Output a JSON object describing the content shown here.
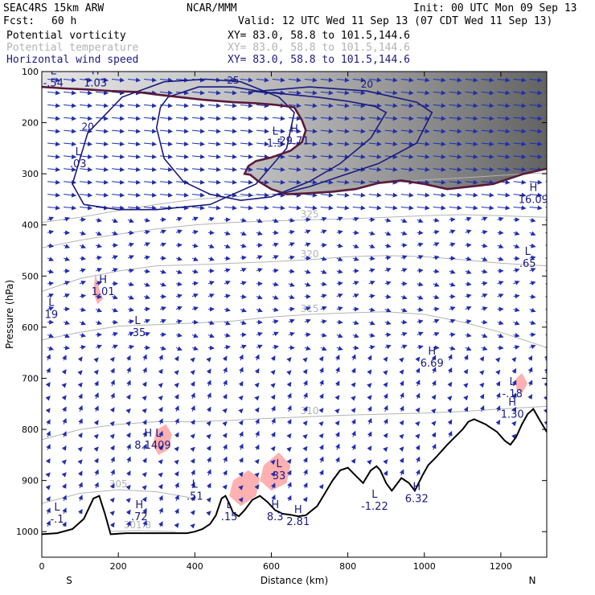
{
  "header": {
    "model": "SEAC4RS 15km ARW",
    "org": "NCAR/MMM",
    "init": "Init: 00 UTC Mon 09 Sep 13",
    "fcst_label": "Fcst:",
    "fcst_value": "60 h",
    "valid": "Valid: 12 UTC Wed 11 Sep 13 (07 CDT Wed 11 Sep 13)"
  },
  "fields": [
    {
      "name": "Potential vorticity",
      "xy": "XY=  83.0, 58.8 to 101.5,144.6",
      "color": "#000000"
    },
    {
      "name": "Potential temperature",
      "xy": "XY=  83.0, 58.8 to 101.5,144.6",
      "color": "#b4b4b4"
    },
    {
      "name": "Horizontal wind speed",
      "xy": "XY=  83.0, 58.8 to 101.5,144.6",
      "color": "#1a1a80"
    }
  ],
  "colors": {
    "pv_contour": "#5a1a3a",
    "theta_contour": "#b4b4b4",
    "wind_contour": "#1a1a80",
    "vectors": "#1f2fb0",
    "high_pv_fill": "#ffb0b0",
    "terrain": "#000000"
  },
  "chart_data": {
    "type": "cross-section",
    "xlabel": "Distance (km)",
    "ylabel": "Pressure (hPa)",
    "xlim": [
      0,
      1320
    ],
    "ylim": [
      1050,
      100
    ],
    "x_ticks": [
      0,
      200,
      400,
      600,
      800,
      1000,
      1200
    ],
    "y_ticks": [
      100,
      200,
      300,
      400,
      500,
      600,
      700,
      800,
      900,
      1000
    ],
    "endpoints": {
      "left": "S",
      "right": "N"
    },
    "terrain_surface": [
      [
        0,
        1005
      ],
      [
        40,
        1003
      ],
      [
        80,
        995
      ],
      [
        110,
        975
      ],
      [
        135,
        935
      ],
      [
        150,
        930
      ],
      [
        165,
        965
      ],
      [
        180,
        1005
      ],
      [
        220,
        1003
      ],
      [
        300,
        1003
      ],
      [
        380,
        1003
      ],
      [
        400,
        1000
      ],
      [
        420,
        995
      ],
      [
        440,
        985
      ],
      [
        455,
        968
      ],
      [
        470,
        935
      ],
      [
        480,
        930
      ],
      [
        490,
        945
      ],
      [
        500,
        963
      ],
      [
        515,
        970
      ],
      [
        530,
        958
      ],
      [
        550,
        938
      ],
      [
        570,
        930
      ],
      [
        590,
        942
      ],
      [
        610,
        958
      ],
      [
        630,
        965
      ],
      [
        650,
        967
      ],
      [
        670,
        970
      ],
      [
        690,
        968
      ],
      [
        720,
        950
      ],
      [
        740,
        925
      ],
      [
        760,
        900
      ],
      [
        780,
        880
      ],
      [
        800,
        875
      ],
      [
        820,
        890
      ],
      [
        840,
        905
      ],
      [
        860,
        880
      ],
      [
        875,
        872
      ],
      [
        885,
        880
      ],
      [
        900,
        905
      ],
      [
        915,
        920
      ],
      [
        925,
        910
      ],
      [
        940,
        895
      ],
      [
        960,
        905
      ],
      [
        975,
        920
      ],
      [
        995,
        890
      ],
      [
        1010,
        870
      ],
      [
        1030,
        855
      ],
      [
        1060,
        830
      ],
      [
        1080,
        815
      ],
      [
        1100,
        800
      ],
      [
        1115,
        785
      ],
      [
        1130,
        780
      ],
      [
        1160,
        790
      ],
      [
        1190,
        805
      ],
      [
        1210,
        822
      ],
      [
        1225,
        830
      ],
      [
        1240,
        815
      ],
      [
        1255,
        790
      ],
      [
        1270,
        770
      ],
      [
        1285,
        760
      ],
      [
        1300,
        780
      ],
      [
        1320,
        805
      ]
    ],
    "tropopause_pv": [
      [
        0,
        130
      ],
      [
        60,
        133
      ],
      [
        120,
        135
      ],
      [
        180,
        138
      ],
      [
        250,
        140
      ],
      [
        300,
        145
      ],
      [
        360,
        150
      ],
      [
        420,
        155
      ],
      [
        500,
        160
      ],
      [
        560,
        162
      ],
      [
        610,
        165
      ],
      [
        660,
        170
      ],
      [
        680,
        195
      ],
      [
        690,
        215
      ],
      [
        680,
        238
      ],
      [
        650,
        255
      ],
      [
        600,
        268
      ],
      [
        560,
        275
      ],
      [
        540,
        285
      ],
      [
        530,
        300
      ],
      [
        545,
        302
      ],
      [
        565,
        314
      ],
      [
        600,
        330
      ],
      [
        640,
        340
      ],
      [
        700,
        338
      ],
      [
        760,
        335
      ],
      [
        820,
        330
      ],
      [
        880,
        318
      ],
      [
        940,
        313
      ],
      [
        1000,
        320
      ],
      [
        1060,
        330
      ],
      [
        1120,
        325
      ],
      [
        1180,
        320
      ],
      [
        1220,
        310
      ],
      [
        1260,
        300
      ],
      [
        1320,
        290
      ]
    ],
    "wind_contours": [
      {
        "label": "20",
        "points": [
          [
            110,
            360
          ],
          [
            80,
            320
          ],
          [
            120,
            220
          ],
          [
            210,
            150
          ],
          [
            320,
            120
          ],
          [
            430,
            115
          ],
          [
            520,
            120
          ],
          [
            620,
            150
          ],
          [
            660,
            180
          ],
          [
            640,
            250
          ],
          [
            560,
            320
          ],
          [
            440,
            360
          ],
          [
            300,
            370
          ],
          [
            200,
            370
          ],
          [
            110,
            360
          ]
        ]
      },
      {
        "label": "25",
        "points": [
          [
            330,
            150
          ],
          [
            410,
            130
          ],
          [
            500,
            130
          ],
          [
            580,
            140
          ],
          [
            650,
            145
          ],
          [
            720,
            150
          ],
          [
            800,
            158
          ],
          [
            870,
            168
          ],
          [
            900,
            180
          ],
          [
            860,
            230
          ],
          [
            780,
            280
          ],
          [
            700,
            315
          ],
          [
            600,
            345
          ],
          [
            520,
            352
          ],
          [
            440,
            340
          ],
          [
            370,
            315
          ],
          [
            320,
            270
          ],
          [
            300,
            210
          ],
          [
            310,
            170
          ],
          [
            330,
            150
          ]
        ]
      },
      {
        "label": "20",
        "points": [
          [
            540,
            140
          ],
          [
            700,
            130
          ],
          [
            850,
            138
          ],
          [
            980,
            160
          ],
          [
            1020,
            180
          ],
          [
            980,
            240
          ],
          [
            880,
            280
          ],
          [
            780,
            305
          ],
          [
            700,
            325
          ],
          [
            620,
            340
          ]
        ]
      }
    ],
    "theta_contours": [
      {
        "label": "330",
        "points": [
          [
            0,
            395
          ],
          [
            100,
            385
          ],
          [
            200,
            372
          ],
          [
            300,
            360
          ],
          [
            400,
            350
          ],
          [
            500,
            345
          ],
          [
            600,
            340
          ],
          [
            700,
            332
          ],
          [
            800,
            325
          ],
          [
            900,
            318
          ],
          [
            1000,
            312
          ],
          [
            1100,
            308
          ],
          [
            1200,
            303
          ],
          [
            1320,
            298
          ]
        ]
      },
      {
        "label": "325",
        "points": [
          [
            0,
            445
          ],
          [
            100,
            430
          ],
          [
            200,
            418
          ],
          [
            300,
            408
          ],
          [
            400,
            400
          ],
          [
            500,
            395
          ],
          [
            600,
            392
          ],
          [
            700,
            390
          ],
          [
            800,
            388
          ],
          [
            900,
            385
          ],
          [
            1000,
            382
          ],
          [
            1100,
            380
          ],
          [
            1200,
            382
          ],
          [
            1320,
            385
          ]
        ]
      },
      {
        "label": "320",
        "points": [
          [
            0,
            530
          ],
          [
            100,
            505
          ],
          [
            200,
            490
          ],
          [
            300,
            480
          ],
          [
            400,
            478
          ],
          [
            500,
            475
          ],
          [
            600,
            472
          ],
          [
            700,
            468
          ],
          [
            800,
            462
          ],
          [
            900,
            460
          ],
          [
            1000,
            462
          ],
          [
            1100,
            468
          ],
          [
            1200,
            475
          ],
          [
            1320,
            480
          ]
        ]
      },
      {
        "label": "315",
        "points": [
          [
            0,
            625
          ],
          [
            100,
            610
          ],
          [
            200,
            598
          ],
          [
            300,
            595
          ],
          [
            400,
            592
          ],
          [
            500,
            588
          ],
          [
            600,
            580
          ],
          [
            700,
            575
          ],
          [
            800,
            572
          ],
          [
            900,
            570
          ],
          [
            1000,
            575
          ],
          [
            1100,
            590
          ],
          [
            1200,
            610
          ],
          [
            1320,
            640
          ]
        ]
      },
      {
        "label": "310",
        "points": [
          [
            0,
            820
          ],
          [
            100,
            800
          ],
          [
            200,
            790
          ],
          [
            300,
            785
          ],
          [
            400,
            785
          ],
          [
            500,
            782
          ],
          [
            600,
            778
          ],
          [
            700,
            775
          ],
          [
            800,
            772
          ],
          [
            900,
            770
          ],
          [
            1000,
            768
          ],
          [
            1100,
            765
          ],
          [
            1200,
            760
          ],
          [
            1320,
            755
          ]
        ]
      },
      {
        "label": "305",
        "points": [
          [
            0,
            945
          ],
          [
            100,
            925
          ],
          [
            200,
            918
          ],
          [
            300,
            922
          ],
          [
            400,
            935
          ]
        ]
      },
      {
        "label": "301.8",
        "points": [
          [
            150,
            1000
          ],
          [
            250,
            998
          ],
          [
            350,
            1000
          ]
        ]
      }
    ],
    "high_pv_regions": [
      [
        [
          140,
          495
        ],
        [
          150,
          525
        ],
        [
          160,
          545
        ],
        [
          145,
          555
        ],
        [
          135,
          530
        ],
        [
          140,
          495
        ]
      ],
      [
        [
          300,
          800
        ],
        [
          325,
          790
        ],
        [
          340,
          810
        ],
        [
          330,
          840
        ],
        [
          305,
          850
        ],
        [
          290,
          830
        ],
        [
          300,
          800
        ]
      ],
      [
        [
          500,
          900
        ],
        [
          540,
          880
        ],
        [
          570,
          895
        ],
        [
          560,
          930
        ],
        [
          520,
          950
        ],
        [
          490,
          930
        ],
        [
          500,
          900
        ]
      ],
      [
        [
          580,
          870
        ],
        [
          620,
          845
        ],
        [
          650,
          870
        ],
        [
          640,
          905
        ],
        [
          600,
          920
        ],
        [
          570,
          900
        ],
        [
          580,
          870
        ]
      ],
      [
        [
          750,
          920
        ],
        [
          780,
          900
        ],
        [
          820,
          920
        ],
        [
          800,
          950
        ],
        [
          760,
          950
        ],
        [
          750,
          920
        ]
      ],
      [
        [
          1240,
          700
        ],
        [
          1255,
          690
        ],
        [
          1270,
          710
        ],
        [
          1255,
          730
        ],
        [
          1240,
          720
        ],
        [
          1240,
          700
        ]
      ]
    ],
    "extrema": [
      {
        "type": "L",
        "value": "-.54",
        "x": 30,
        "y": 112
      },
      {
        "type": "H",
        "value": "1.03",
        "x": 140,
        "y": 112
      },
      {
        "type": "L",
        "value": ".03",
        "x": 95,
        "y": 270
      },
      {
        "type": "H",
        "value": "1.01",
        "x": 160,
        "y": 520
      },
      {
        "type": "L",
        "value": "19",
        "x": 25,
        "y": 565
      },
      {
        "type": "L",
        "value": ".35",
        "x": 250,
        "y": 600
      },
      {
        "type": "L",
        "value": "1.5",
        "x": 610,
        "y": 230
      },
      {
        "type": "H",
        "value": "29.71",
        "x": 660,
        "y": 225
      },
      {
        "type": "H",
        "value": "16.09",
        "x": 1285,
        "y": 340
      },
      {
        "type": "L",
        "value": ".65",
        "x": 1270,
        "y": 465
      },
      {
        "type": "H",
        "value": "6.69",
        "x": 1020,
        "y": 660
      },
      {
        "type": "L",
        "value": "-.18",
        "x": 1230,
        "y": 720
      },
      {
        "type": "H",
        "value": "1.30",
        "x": 1230,
        "y": 760
      },
      {
        "type": "H L",
        "value": "8.1409",
        "x": 290,
        "y": 820
      },
      {
        "type": "L",
        "value": ".51",
        "x": 400,
        "y": 920
      },
      {
        "type": "L",
        "value": "33",
        "x": 620,
        "y": 880
      },
      {
        "type": "H",
        "value": "8.3",
        "x": 610,
        "y": 960
      },
      {
        "type": "H",
        "value": "2.81",
        "x": 670,
        "y": 970
      },
      {
        "type": "H",
        "value": ".72",
        "x": 255,
        "y": 960
      },
      {
        "type": "L",
        "value": "-.1",
        "x": 40,
        "y": 965
      },
      {
        "type": "L",
        "value": "-1.22",
        "x": 870,
        "y": 940
      },
      {
        "type": "H",
        "value": "6.32",
        "x": 980,
        "y": 925
      },
      {
        "type": "L",
        "value": ".15",
        "x": 490,
        "y": 960
      }
    ]
  }
}
